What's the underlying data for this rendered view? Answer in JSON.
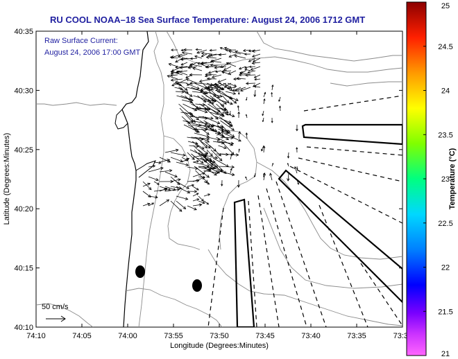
{
  "chart_data": {
    "type": "scatter",
    "title": "RU COOL  NOAA–18  Sea Surface Temperature:  August 24, 2006 1712 GMT",
    "annotation_line1": "Raw Surface Current:",
    "annotation_line2": "August 24, 2006 17:00 GMT",
    "xlabel": "Longitude (Degrees:Minutes)",
    "ylabel": "Latitude (Degrees:Minutes)",
    "x_ticks": [
      "74:10",
      "74:05",
      "74:00",
      "73:55",
      "73:50",
      "73:45",
      "73:40",
      "73:35",
      "73:3"
    ],
    "y_ticks": [
      "40:35",
      "40:30",
      "40:25",
      "40:20",
      "40:15",
      "40:10"
    ],
    "xlim_minutes_west": [
      10,
      30
    ],
    "ylim_minutes_north": [
      10,
      35
    ],
    "scale_label": "50 cm/s",
    "colorbar": {
      "label": "Temperature (°C)",
      "ticks": [
        "25",
        "24.5",
        "24",
        "23.5",
        "23",
        "22.5",
        "22",
        "21.5",
        "21"
      ],
      "range": [
        21,
        25
      ],
      "colormap": "jet-like (magenta to dark red)"
    },
    "grid": false,
    "legend": "none"
  }
}
